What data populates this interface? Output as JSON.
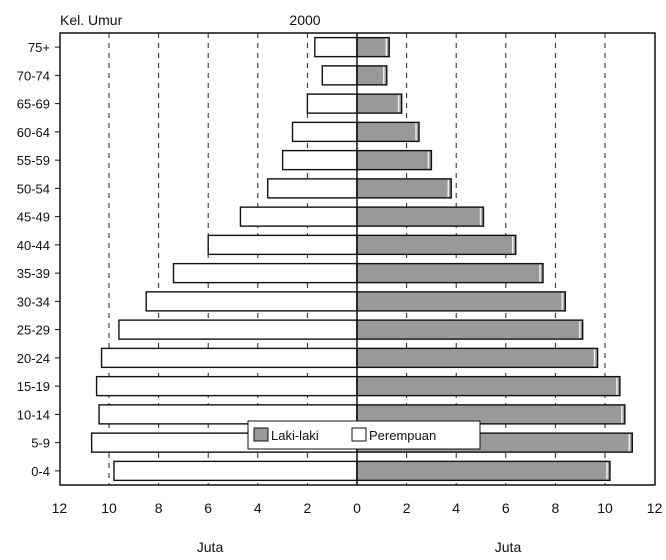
{
  "chart_data": {
    "type": "bar",
    "orientation": "horizontal",
    "title": "2000",
    "y_axis_title": "Kel. Umur",
    "categories": [
      "75+",
      "70-74",
      "65-69",
      "60-64",
      "55-59",
      "50-54",
      "45-49",
      "40-44",
      "35-39",
      "30-34",
      "25-29",
      "20-24",
      "15-19",
      "10-14",
      "5-9",
      "0-4"
    ],
    "series": [
      {
        "name": "Laki-laki",
        "side": "right",
        "color": "#999999",
        "values": [
          1.3,
          1.2,
          1.8,
          2.5,
          3.0,
          3.8,
          5.1,
          6.4,
          7.5,
          8.4,
          9.1,
          9.7,
          10.6,
          10.8,
          11.1,
          10.2
        ]
      },
      {
        "name": "Perempuan",
        "side": "left",
        "color": "#ffffff",
        "values": [
          1.7,
          1.4,
          2.0,
          2.6,
          3.0,
          3.6,
          4.7,
          6.0,
          7.4,
          8.5,
          9.6,
          10.3,
          10.5,
          10.4,
          10.7,
          9.8
        ]
      }
    ],
    "x_ticks_left": [
      "12",
      "10",
      "8",
      "6",
      "4",
      "2",
      "0"
    ],
    "x_ticks_right": [
      "2",
      "4",
      "6",
      "8",
      "10",
      "12"
    ],
    "x_labels": [
      "Juta",
      "Juta"
    ],
    "xlim": [
      -12,
      12
    ],
    "grid": "vertical-dashed",
    "legend_placement": "bottom-center"
  }
}
